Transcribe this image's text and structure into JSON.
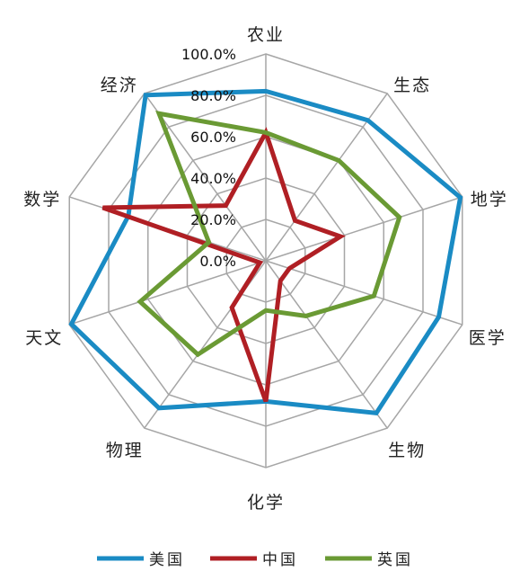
{
  "chart_data": {
    "type": "radar",
    "categories": [
      "农业",
      "生态",
      "地学",
      "医学",
      "生物",
      "化学",
      "物理",
      "天文",
      "数学",
      "经济"
    ],
    "ticks": [
      "0.0%",
      "20.0%",
      "40.0%",
      "60.0%",
      "80.0%",
      "100.0%"
    ],
    "rlim": [
      0,
      100
    ],
    "grid": true,
    "legend_position": "bottom",
    "series": [
      {
        "name": "美国",
        "color": "#1a8bc4",
        "values": [
          82,
          84,
          99,
          88,
          91,
          68,
          88,
          99,
          70,
          99
        ]
      },
      {
        "name": "中国",
        "color": "#b01f24",
        "values": [
          62,
          24,
          38,
          12,
          12,
          68,
          28,
          3,
          83,
          33
        ]
      },
      {
        "name": "英国",
        "color": "#6a9a34",
        "values": [
          62,
          60,
          68,
          55,
          33,
          24,
          56,
          64,
          29,
          88
        ]
      }
    ]
  }
}
